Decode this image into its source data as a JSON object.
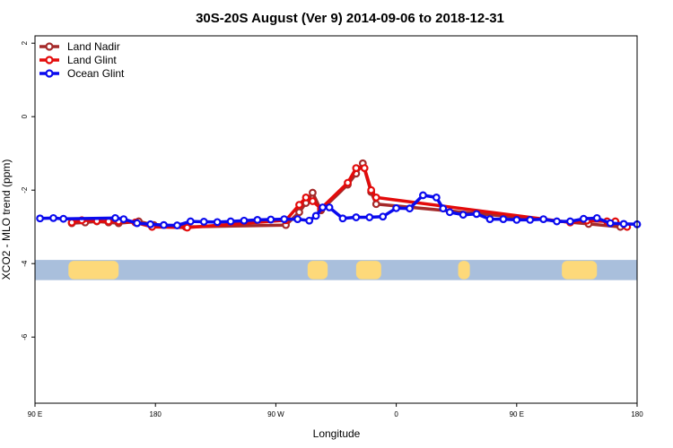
{
  "chart_data": {
    "type": "line",
    "title": "30S-20S August (Ver 9)   2014-09-06 to 2018-12-31",
    "xlabel": "Longitude",
    "ylabel": "XCO2 - MLO trend (ppm)",
    "xlim": [
      90,
      450
    ],
    "ylim": [
      -7.8,
      2.2
    ],
    "x_ticks": [
      {
        "value": 90,
        "label": "90 E"
      },
      {
        "value": 162,
        "label": "180"
      },
      {
        "value": 234,
        "label": "90 W"
      },
      {
        "value": 306,
        "label": "0"
      },
      {
        "value": 378,
        "label": "90 E"
      },
      {
        "value": 450,
        "label": "180"
      }
    ],
    "y_ticks": [
      {
        "value": 2,
        "label": "2"
      },
      {
        "value": 0,
        "label": "0"
      },
      {
        "value": -2,
        "label": "-2"
      },
      {
        "value": -4,
        "label": "-4"
      },
      {
        "value": -6,
        "label": "-6"
      }
    ],
    "legend_position": "top-left",
    "grid": false,
    "map_strip": {
      "y_range": [
        -4.45,
        -3.9
      ],
      "ocean_color": "#a9bfdc",
      "land_color": "#fdd97a",
      "land_x": [
        [
          110,
          140
        ],
        [
          253,
          265
        ],
        [
          282,
          297
        ],
        [
          343,
          350
        ],
        [
          405,
          426
        ]
      ]
    },
    "series": [
      {
        "name": "Land Nadir",
        "color": "#a52a2a",
        "x": [
          112,
          120,
          127,
          134,
          140,
          152,
          161,
          180,
          240,
          248,
          252,
          256,
          261,
          277,
          282,
          286,
          291,
          294,
          421,
          440
        ],
        "y": [
          -2.9,
          -2.88,
          -2.85,
          -2.88,
          -2.9,
          -2.85,
          -2.95,
          -3.0,
          -2.95,
          -2.6,
          -2.35,
          -2.07,
          -2.55,
          -1.85,
          -1.55,
          -1.27,
          -2.05,
          -2.38,
          -2.92,
          -3.0
        ]
      },
      {
        "name": "Land Glint",
        "color": "#e30b0b",
        "x": [
          112,
          118,
          127,
          134,
          140,
          150,
          160,
          181,
          240,
          248,
          252,
          256,
          261,
          277,
          282,
          287,
          291,
          294,
          410,
          420,
          432,
          437,
          444
        ],
        "y": [
          -2.88,
          -2.82,
          -2.84,
          -2.85,
          -2.85,
          -2.88,
          -3.0,
          -3.02,
          -2.82,
          -2.4,
          -2.2,
          -2.3,
          -2.5,
          -1.8,
          -1.4,
          -1.4,
          -2.0,
          -2.2,
          -2.88,
          -2.83,
          -2.85,
          -2.85,
          -3.0
        ]
      },
      {
        "name": "Ocean Glint",
        "color": "#0a0aee",
        "x": [
          93,
          101,
          107,
          138,
          143,
          151,
          159,
          167,
          175,
          183,
          191,
          199,
          207,
          215,
          223,
          231,
          239,
          247,
          254,
          258,
          262,
          266,
          274,
          282,
          290,
          298,
          306,
          314,
          322,
          330,
          334,
          338,
          346,
          354,
          362,
          370,
          378,
          386,
          394,
          402,
          410,
          418,
          426,
          434,
          442,
          450
        ],
        "y": [
          -2.77,
          -2.76,
          -2.78,
          -2.76,
          -2.79,
          -2.9,
          -2.93,
          -2.95,
          -2.96,
          -2.85,
          -2.86,
          -2.87,
          -2.85,
          -2.83,
          -2.81,
          -2.8,
          -2.79,
          -2.79,
          -2.83,
          -2.7,
          -2.47,
          -2.47,
          -2.77,
          -2.74,
          -2.74,
          -2.72,
          -2.49,
          -2.5,
          -2.14,
          -2.2,
          -2.5,
          -2.6,
          -2.67,
          -2.65,
          -2.79,
          -2.79,
          -2.81,
          -2.81,
          -2.79,
          -2.85,
          -2.85,
          -2.78,
          -2.76,
          -2.9,
          -2.92,
          -2.93
        ]
      }
    ]
  }
}
